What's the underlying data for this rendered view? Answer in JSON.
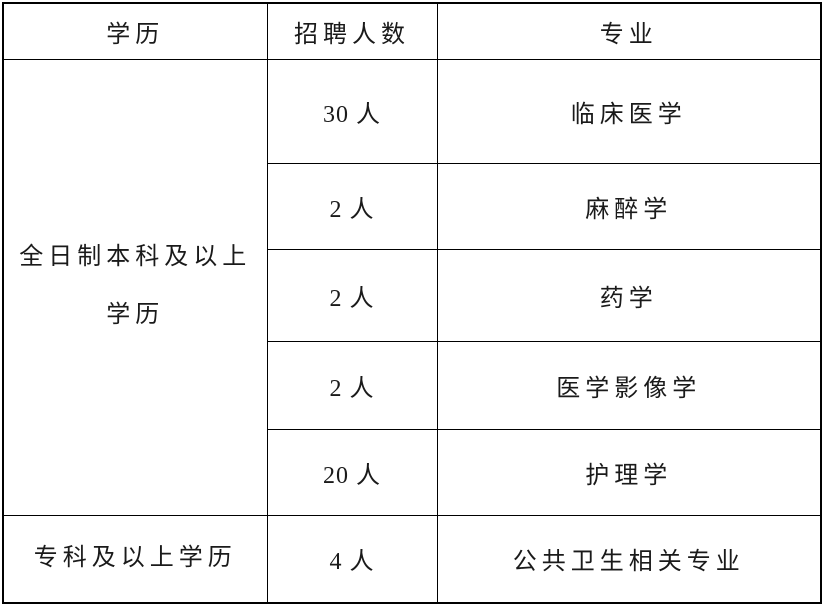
{
  "table": {
    "headers": [
      "学历",
      "招聘人数",
      "专业"
    ],
    "groups": [
      {
        "education": "全日制本科及以上学历",
        "education_lines": [
          "全日制本科及以上",
          "学历"
        ],
        "rows": [
          {
            "count": "30 人",
            "major": "临床医学"
          },
          {
            "count": "2 人",
            "major": "麻醉学"
          },
          {
            "count": "2 人",
            "major": "药学"
          },
          {
            "count": "2 人",
            "major": "医学影像学"
          },
          {
            "count": "20 人",
            "major": "护理学"
          }
        ]
      },
      {
        "education": "专科及以上学历",
        "education_lines": [
          "专科及以上学历"
        ],
        "rows": [
          {
            "count": "4 人",
            "major": "公共卫生相关专业"
          }
        ]
      }
    ],
    "colors": {
      "border": "#000000",
      "text": "#1a1a1a",
      "background": "#ffffff"
    }
  }
}
